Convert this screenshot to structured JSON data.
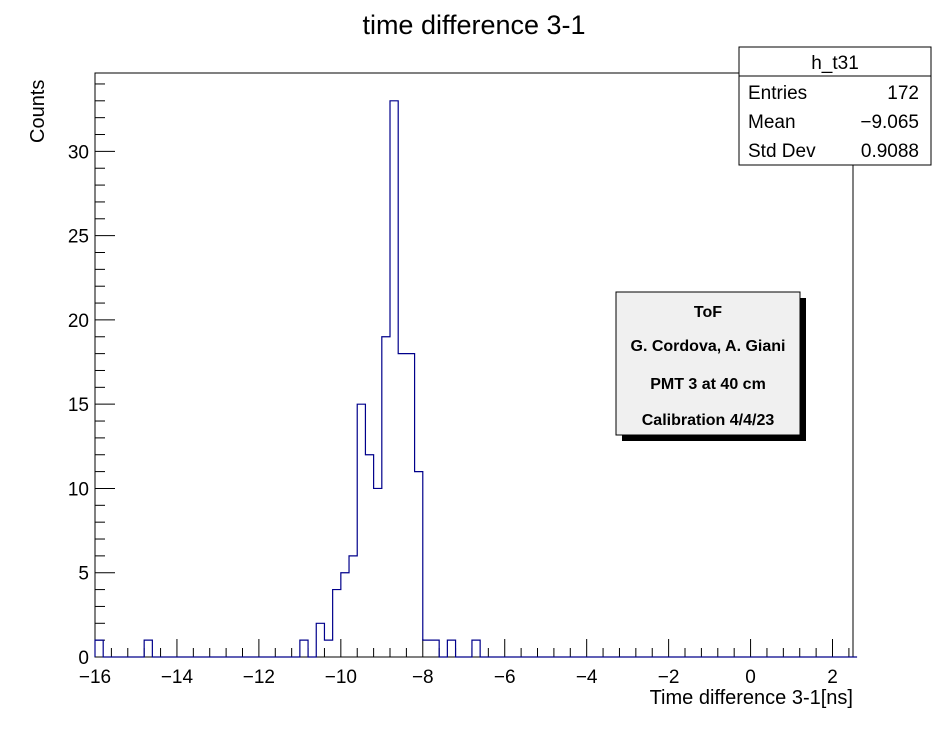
{
  "chart_data": {
    "type": "histogram",
    "title": "time difference 3-1",
    "xlabel": "Time difference 3-1[ns]",
    "ylabel": "Counts",
    "xlim": [
      -16,
      2.5
    ],
    "ylim": [
      0,
      34.65
    ],
    "bin_width": 0.2,
    "x_ticks": [
      -16,
      -14,
      -12,
      -10,
      -8,
      -6,
      -4,
      -2,
      0,
      2
    ],
    "x_tick_labels": [
      "−16",
      "−14",
      "−12",
      "−10",
      "−8",
      "−6",
      "−4",
      "−2",
      "0",
      "2"
    ],
    "y_ticks": [
      0,
      5,
      10,
      15,
      20,
      25,
      30
    ],
    "y_tick_labels": [
      "0",
      "5",
      "10",
      "15",
      "20",
      "25",
      "30"
    ],
    "line_color": "#00008b",
    "bins": [
      {
        "x": -16.0,
        "count": 1
      },
      {
        "x": -14.8,
        "count": 1
      },
      {
        "x": -11.0,
        "count": 1
      },
      {
        "x": -10.6,
        "count": 2
      },
      {
        "x": -10.4,
        "count": 1
      },
      {
        "x": -10.2,
        "count": 4
      },
      {
        "x": -10.0,
        "count": 5
      },
      {
        "x": -9.8,
        "count": 6
      },
      {
        "x": -9.6,
        "count": 15
      },
      {
        "x": -9.4,
        "count": 12
      },
      {
        "x": -9.2,
        "count": 10
      },
      {
        "x": -9.0,
        "count": 19
      },
      {
        "x": -8.8,
        "count": 33
      },
      {
        "x": -8.6,
        "count": 18
      },
      {
        "x": -8.4,
        "count": 18
      },
      {
        "x": -8.2,
        "count": 11
      },
      {
        "x": -8.0,
        "count": 1
      },
      {
        "x": -7.8,
        "count": 1
      },
      {
        "x": -7.4,
        "count": 1
      },
      {
        "x": -6.8,
        "count": 1
      }
    ]
  },
  "stats_box": {
    "name": "h_t31",
    "rows": [
      {
        "label": "Entries",
        "value": "172"
      },
      {
        "label": "Mean",
        "value": "−9.065"
      },
      {
        "label": "Std Dev",
        "value": "0.9088"
      }
    ]
  },
  "info_box": {
    "lines": [
      "ToF",
      "G. Cordova, A. Giani",
      "PMT 3 at 40 cm",
      "Calibration 4/4/23"
    ]
  }
}
